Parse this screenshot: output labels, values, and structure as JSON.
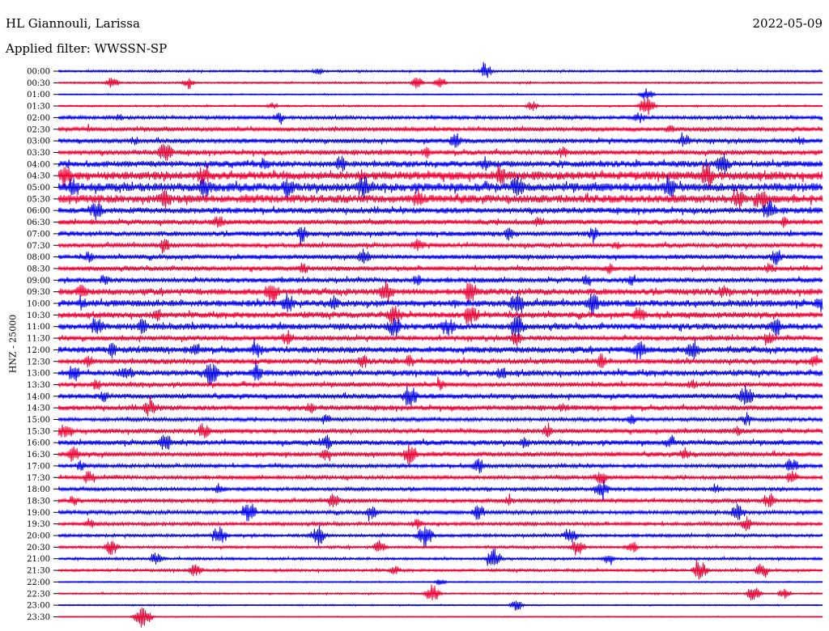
{
  "header": {
    "station": "HL Giannouli, Larissa",
    "date": "2022-05-09",
    "filter": "Applied filter: WWSSN-SP"
  },
  "chart_data": {
    "type": "line",
    "title": "HL Giannouli, Larissa",
    "ylabel": "HNZ - 25000",
    "colors": [
      "#0000ee",
      "#ee0033"
    ],
    "series": [
      {
        "label": "00:00",
        "amplitude": 0.25,
        "events": [
          [
            0.34,
            0.35
          ],
          [
            0.56,
            0.6
          ]
        ]
      },
      {
        "label": "00:30",
        "amplitude": 0.2,
        "events": [
          [
            0.07,
            0.6
          ],
          [
            0.17,
            0.4
          ],
          [
            0.47,
            0.5
          ],
          [
            0.5,
            0.5
          ]
        ]
      },
      {
        "label": "01:00",
        "amplitude": 0.15,
        "events": [
          [
            0.77,
            0.55
          ]
        ]
      },
      {
        "label": "01:30",
        "amplitude": 0.2,
        "events": [
          [
            0.28,
            0.3
          ],
          [
            0.62,
            0.45
          ],
          [
            0.77,
            0.9
          ]
        ]
      },
      {
        "label": "02:00",
        "amplitude": 0.4,
        "events": [
          [
            0.08,
            0.35
          ],
          [
            0.29,
            0.45
          ],
          [
            0.76,
            0.5
          ]
        ]
      },
      {
        "label": "02:30",
        "amplitude": 0.5,
        "events": [
          [
            0.04,
            0.3
          ],
          [
            0.36,
            0.3
          ],
          [
            0.8,
            0.4
          ]
        ]
      },
      {
        "label": "03:00",
        "amplitude": 0.55,
        "events": [
          [
            0.1,
            0.4
          ],
          [
            0.52,
            0.7
          ],
          [
            0.82,
            0.6
          ],
          [
            0.97,
            0.45
          ]
        ]
      },
      {
        "label": "03:30",
        "amplitude": 0.6,
        "events": [
          [
            0.14,
            0.9
          ],
          [
            0.48,
            0.5
          ],
          [
            0.66,
            0.5
          ]
        ]
      },
      {
        "label": "04:00",
        "amplitude": 0.75,
        "events": [
          [
            0.27,
            0.6
          ],
          [
            0.37,
            0.8
          ],
          [
            0.56,
            0.7
          ],
          [
            0.87,
            0.9
          ]
        ]
      },
      {
        "label": "04:30",
        "amplitude": 1.0,
        "events": [
          [
            0.01,
            1.0
          ],
          [
            0.19,
            0.9
          ],
          [
            0.58,
            0.8
          ],
          [
            0.85,
            1.0
          ]
        ]
      },
      {
        "label": "05:00",
        "amplitude": 1.0,
        "events": [
          [
            0.02,
            0.9
          ],
          [
            0.19,
            1.0
          ],
          [
            0.3,
            0.9
          ],
          [
            0.4,
            1.0
          ],
          [
            0.6,
            1.0
          ],
          [
            0.8,
            0.9
          ]
        ]
      },
      {
        "label": "05:30",
        "amplitude": 0.95,
        "events": [
          [
            0.14,
            0.9
          ],
          [
            0.47,
            0.8
          ],
          [
            0.89,
            0.9
          ],
          [
            0.92,
            1.0
          ]
        ]
      },
      {
        "label": "06:00",
        "amplitude": 0.7,
        "events": [
          [
            0.05,
            0.8
          ],
          [
            0.93,
            0.9
          ]
        ]
      },
      {
        "label": "06:30",
        "amplitude": 0.6,
        "events": [
          [
            0.21,
            0.6
          ],
          [
            0.63,
            0.5
          ],
          [
            0.95,
            0.5
          ]
        ]
      },
      {
        "label": "07:00",
        "amplitude": 0.6,
        "events": [
          [
            0.32,
            0.7
          ],
          [
            0.59,
            0.6
          ],
          [
            0.7,
            0.6
          ]
        ]
      },
      {
        "label": "07:30",
        "amplitude": 0.55,
        "events": [
          [
            0.14,
            0.6
          ],
          [
            0.47,
            0.6
          ],
          [
            0.73,
            0.4
          ]
        ]
      },
      {
        "label": "08:00",
        "amplitude": 0.55,
        "events": [
          [
            0.04,
            0.5
          ],
          [
            0.4,
            0.7
          ],
          [
            0.94,
            0.7
          ]
        ]
      },
      {
        "label": "08:30",
        "amplitude": 0.55,
        "events": [
          [
            0.32,
            0.6
          ],
          [
            0.72,
            0.5
          ],
          [
            0.93,
            0.5
          ]
        ]
      },
      {
        "label": "09:00",
        "amplitude": 0.6,
        "events": [
          [
            0.06,
            0.5
          ],
          [
            0.47,
            0.5
          ],
          [
            0.69,
            0.5
          ],
          [
            0.75,
            0.6
          ]
        ]
      },
      {
        "label": "09:30",
        "amplitude": 0.75,
        "events": [
          [
            0.03,
            0.7
          ],
          [
            0.28,
            1.0
          ],
          [
            0.43,
            1.0
          ],
          [
            0.54,
            1.0
          ],
          [
            0.87,
            0.6
          ]
        ]
      },
      {
        "label": "10:00",
        "amplitude": 0.8,
        "events": [
          [
            0.03,
            0.6
          ],
          [
            0.3,
            0.9
          ],
          [
            0.36,
            0.7
          ],
          [
            0.6,
            1.0
          ],
          [
            0.7,
            0.9
          ],
          [
            1.0,
            0.9
          ]
        ]
      },
      {
        "label": "10:30",
        "amplitude": 0.7,
        "events": [
          [
            0.13,
            0.6
          ],
          [
            0.44,
            0.9
          ],
          [
            0.54,
            0.9
          ],
          [
            0.76,
            0.8
          ]
        ]
      },
      {
        "label": "11:00",
        "amplitude": 0.75,
        "events": [
          [
            0.05,
            0.9
          ],
          [
            0.11,
            0.7
          ],
          [
            0.44,
            0.9
          ],
          [
            0.51,
            0.9
          ],
          [
            0.6,
            1.0
          ],
          [
            0.94,
            0.8
          ]
        ]
      },
      {
        "label": "11:30",
        "amplitude": 0.6,
        "events": [
          [
            0.3,
            0.7
          ],
          [
            0.6,
            0.7
          ],
          [
            0.93,
            0.6
          ]
        ]
      },
      {
        "label": "12:00",
        "amplitude": 0.75,
        "events": [
          [
            0.07,
            0.6
          ],
          [
            0.18,
            0.7
          ],
          [
            0.26,
            0.7
          ],
          [
            0.76,
            0.9
          ],
          [
            0.83,
            0.9
          ]
        ]
      },
      {
        "label": "12:30",
        "amplitude": 0.65,
        "events": [
          [
            0.04,
            0.6
          ],
          [
            0.4,
            0.6
          ],
          [
            0.46,
            0.6
          ],
          [
            0.71,
            0.7
          ],
          [
            0.99,
            0.6
          ]
        ]
      },
      {
        "label": "13:00",
        "amplitude": 0.7,
        "events": [
          [
            0.02,
            0.8
          ],
          [
            0.09,
            0.7
          ],
          [
            0.2,
            1.0
          ],
          [
            0.26,
            0.7
          ],
          [
            0.58,
            0.6
          ]
        ]
      },
      {
        "label": "13:30",
        "amplitude": 0.55,
        "events": [
          [
            0.05,
            0.5
          ],
          [
            0.5,
            0.5
          ],
          [
            0.83,
            0.5
          ]
        ]
      },
      {
        "label": "14:00",
        "amplitude": 0.6,
        "events": [
          [
            0.06,
            0.5
          ],
          [
            0.46,
            1.0
          ],
          [
            0.9,
            0.9
          ]
        ]
      },
      {
        "label": "14:30",
        "amplitude": 0.6,
        "events": [
          [
            0.12,
            0.8
          ],
          [
            0.33,
            0.5
          ],
          [
            0.66,
            0.4
          ]
        ]
      },
      {
        "label": "15:00",
        "amplitude": 0.45,
        "events": [
          [
            0.35,
            0.5
          ],
          [
            0.75,
            0.5
          ],
          [
            0.9,
            0.5
          ]
        ]
      },
      {
        "label": "15:30",
        "amplitude": 0.55,
        "events": [
          [
            0.01,
            0.8
          ],
          [
            0.19,
            0.7
          ],
          [
            0.64,
            0.5
          ],
          [
            0.89,
            0.5
          ]
        ]
      },
      {
        "label": "16:00",
        "amplitude": 0.6,
        "events": [
          [
            0.14,
            0.8
          ],
          [
            0.35,
            0.7
          ],
          [
            0.61,
            0.5
          ],
          [
            0.8,
            0.5
          ]
        ]
      },
      {
        "label": "16:30",
        "amplitude": 0.55,
        "events": [
          [
            0.02,
            0.7
          ],
          [
            0.35,
            0.6
          ],
          [
            0.46,
            1.0
          ],
          [
            0.82,
            0.6
          ]
        ]
      },
      {
        "label": "17:00",
        "amplitude": 0.45,
        "events": [
          [
            0.03,
            0.5
          ],
          [
            0.55,
            0.7
          ],
          [
            0.96,
            0.7
          ]
        ]
      },
      {
        "label": "17:30",
        "amplitude": 0.45,
        "events": [
          [
            0.04,
            0.6
          ],
          [
            0.71,
            0.7
          ],
          [
            0.96,
            0.6
          ]
        ]
      },
      {
        "label": "18:00",
        "amplitude": 0.4,
        "events": [
          [
            0.21,
            0.5
          ],
          [
            0.71,
            0.9
          ],
          [
            0.86,
            0.5
          ]
        ]
      },
      {
        "label": "18:30",
        "amplitude": 0.45,
        "events": [
          [
            0.02,
            0.5
          ],
          [
            0.36,
            0.7
          ],
          [
            0.59,
            0.4
          ],
          [
            0.93,
            0.7
          ]
        ]
      },
      {
        "label": "19:00",
        "amplitude": 0.45,
        "events": [
          [
            0.25,
            0.9
          ],
          [
            0.41,
            0.6
          ],
          [
            0.55,
            0.7
          ],
          [
            0.89,
            0.8
          ]
        ]
      },
      {
        "label": "19:30",
        "amplitude": 0.4,
        "events": [
          [
            0.04,
            0.5
          ],
          [
            0.47,
            0.5
          ],
          [
            0.9,
            0.6
          ]
        ]
      },
      {
        "label": "20:00",
        "amplitude": 0.35,
        "events": [
          [
            0.21,
            0.8
          ],
          [
            0.34,
            0.9
          ],
          [
            0.48,
            1.0
          ],
          [
            0.67,
            0.8
          ]
        ]
      },
      {
        "label": "20:30",
        "amplitude": 0.3,
        "events": [
          [
            0.07,
            0.7
          ],
          [
            0.42,
            0.6
          ],
          [
            0.68,
            0.8
          ],
          [
            0.75,
            0.6
          ]
        ]
      },
      {
        "label": "21:00",
        "amplitude": 0.3,
        "events": [
          [
            0.13,
            0.6
          ],
          [
            0.57,
            0.9
          ],
          [
            0.72,
            0.5
          ]
        ]
      },
      {
        "label": "21:30",
        "amplitude": 0.3,
        "events": [
          [
            0.18,
            0.6
          ],
          [
            0.44,
            0.4
          ],
          [
            0.84,
            0.8
          ],
          [
            0.92,
            0.6
          ]
        ]
      },
      {
        "label": "22:00",
        "amplitude": 0.15,
        "events": [
          [
            0.5,
            0.3
          ]
        ]
      },
      {
        "label": "22:30",
        "amplitude": 0.2,
        "events": [
          [
            0.49,
            0.8
          ],
          [
            0.91,
            0.7
          ],
          [
            0.95,
            0.5
          ]
        ]
      },
      {
        "label": "23:00",
        "amplitude": 0.15,
        "events": [
          [
            0.6,
            0.5
          ]
        ]
      },
      {
        "label": "23:30",
        "amplitude": 0.12,
        "events": [
          [
            0.11,
            1.0
          ]
        ]
      }
    ]
  }
}
